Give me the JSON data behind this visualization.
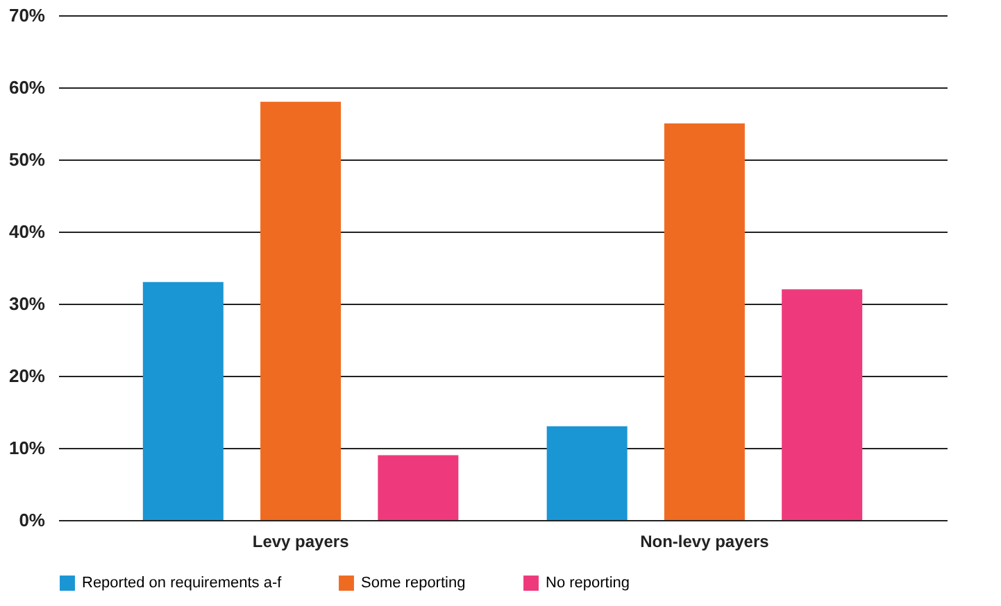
{
  "chart_data": {
    "type": "bar",
    "categories": [
      "Levy payers",
      "Non-levy payers"
    ],
    "series": [
      {
        "name": "Reported on requirements a-f",
        "color": "#1a96d4",
        "values": [
          33,
          13
        ]
      },
      {
        "name": "Some reporting",
        "color": "#f06b22",
        "values": [
          58,
          55
        ]
      },
      {
        "name": "No reporting",
        "color": "#ee3a7c",
        "values": [
          9,
          32
        ]
      }
    ],
    "ylim": [
      0,
      70
    ],
    "yticks": [
      {
        "value": 0,
        "label": "0%"
      },
      {
        "value": 10,
        "label": "10%"
      },
      {
        "value": 20,
        "label": "20%"
      },
      {
        "value": 30,
        "label": "30%"
      },
      {
        "value": 40,
        "label": "40%"
      },
      {
        "value": 50,
        "label": "50%"
      },
      {
        "value": 60,
        "label": "60%"
      },
      {
        "value": 70,
        "label": "70%"
      }
    ],
    "grid": "y",
    "legend": "bottom"
  }
}
